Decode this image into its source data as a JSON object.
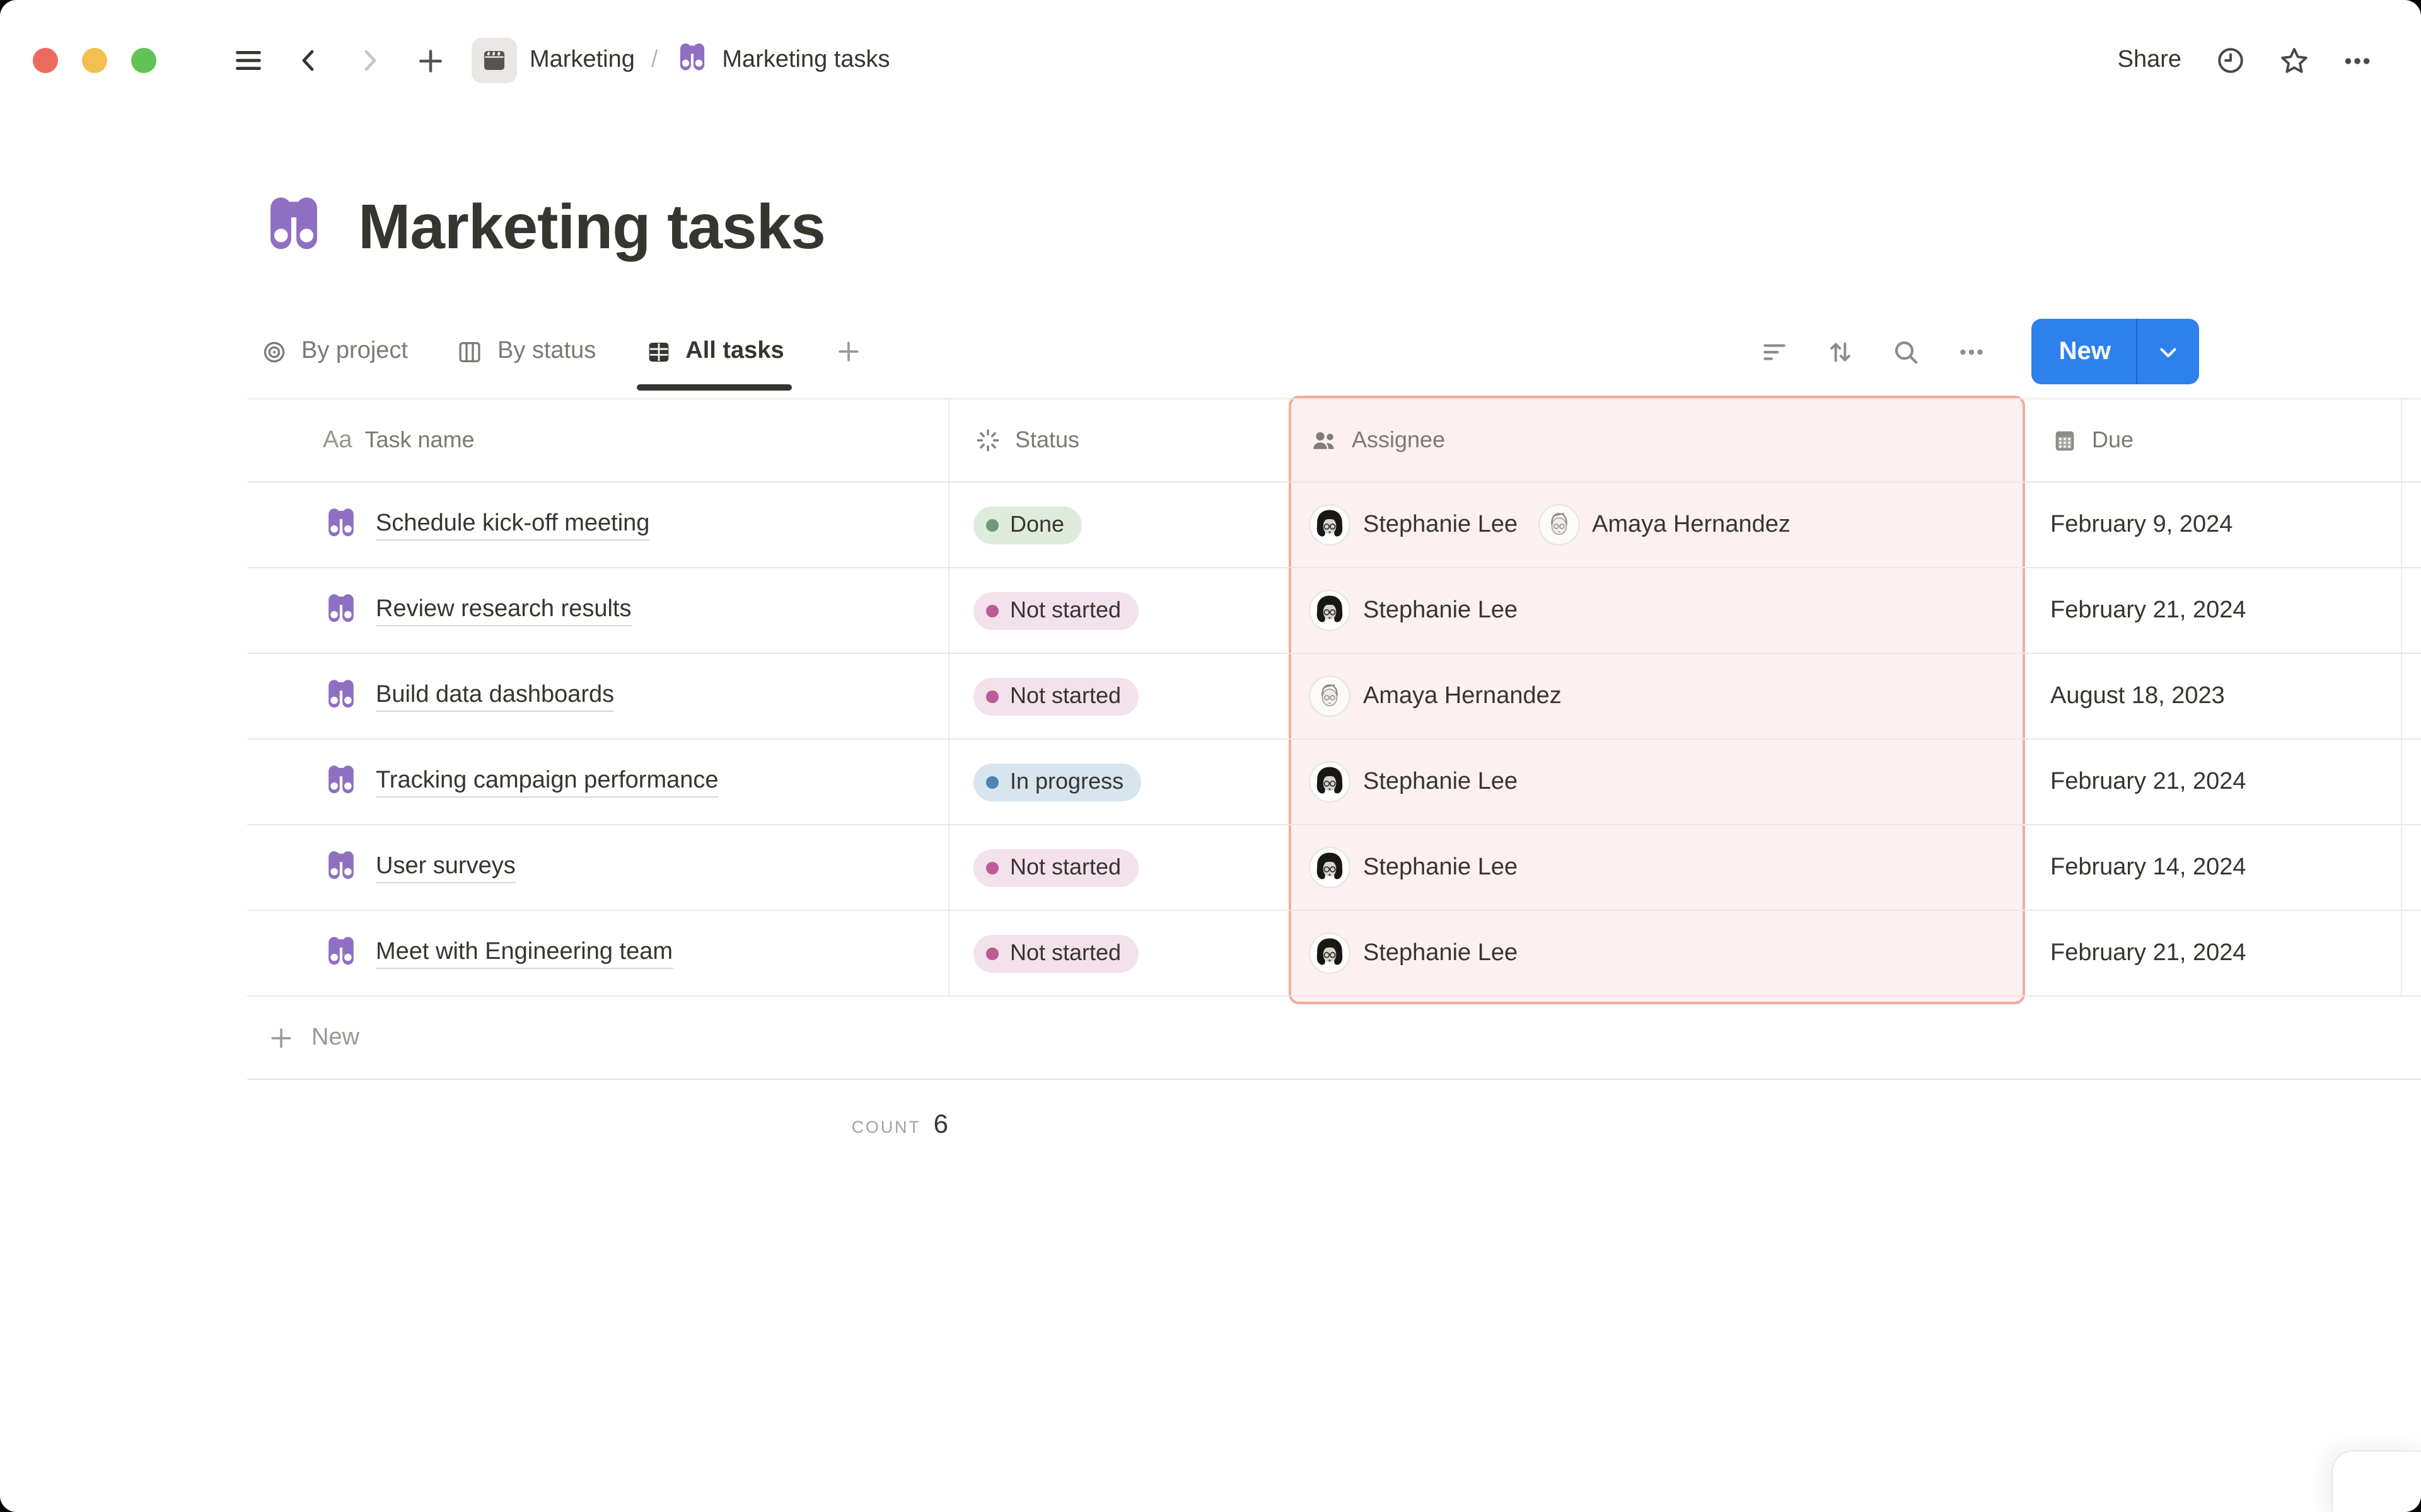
{
  "topbar": {
    "breadcrumb": [
      {
        "label": "Marketing",
        "icon": "clapperboard-page-icon"
      },
      {
        "label": "Marketing tasks",
        "icon": "binoculars-icon"
      }
    ],
    "separator": "/",
    "share_label": "Share"
  },
  "page": {
    "title": "Marketing tasks",
    "title_icon": "binoculars-icon"
  },
  "views": {
    "tabs": [
      {
        "label": "By project",
        "icon": "target-icon",
        "active": false
      },
      {
        "label": "By status",
        "icon": "board-icon",
        "active": false
      },
      {
        "label": "All tasks",
        "icon": "table-icon",
        "active": true
      }
    ]
  },
  "toolbar": {
    "new_label": "New"
  },
  "table": {
    "columns": [
      {
        "label": "Task name",
        "icon": "text-icon",
        "icon_text": "Aa"
      },
      {
        "label": "Status",
        "icon": "spinner-icon"
      },
      {
        "label": "Assignee",
        "icon": "people-icon",
        "highlighted": true
      },
      {
        "label": "Due",
        "icon": "calendar-icon"
      }
    ],
    "rows": [
      {
        "task": "Schedule kick-off meeting",
        "status": "Done",
        "status_color": "green",
        "assignees": [
          "Stephanie Lee",
          "Amaya Hernandez"
        ],
        "due": "February 9, 2024"
      },
      {
        "task": "Review research results",
        "status": "Not started",
        "status_color": "pink",
        "assignees": [
          "Stephanie Lee"
        ],
        "due": "February 21, 2024"
      },
      {
        "task": "Build data dashboards",
        "status": "Not started",
        "status_color": "pink",
        "assignees": [
          "Amaya Hernandez"
        ],
        "due": "August 18, 2023"
      },
      {
        "task": "Tracking campaign performance",
        "status": "In progress",
        "status_color": "blue",
        "assignees": [
          "Stephanie Lee"
        ],
        "due": "February 21, 2024"
      },
      {
        "task": "User surveys",
        "status": "Not started",
        "status_color": "pink",
        "assignees": [
          "Stephanie Lee"
        ],
        "due": "February 14, 2024"
      },
      {
        "task": "Meet with Engineering team",
        "status": "Not started",
        "status_color": "pink",
        "assignees": [
          "Stephanie Lee"
        ],
        "due": "February 21, 2024"
      }
    ],
    "new_row_label": "New",
    "count_label": "COUNT",
    "count_value": "6"
  },
  "people": {
    "Stephanie Lee": "dark-haired-illustration",
    "Amaya Hernandez": "light-sketch-illustration"
  },
  "colors": {
    "accent_blue": "#2E80EC",
    "binoculars_purple": "#8F6FC2",
    "highlight_column_bg": "#FCF1F0",
    "highlight_column_border": "#F0ABA2",
    "status_done_bg": "#DEECDC",
    "status_done_dot": "#6E9B76",
    "status_not_started_bg": "#F3E1EB",
    "status_not_started_dot": "#BE5A96",
    "status_in_progress_bg": "#D7E5EE",
    "status_in_progress_dot": "#4F83B0",
    "traffic_red": "#ED6A5E",
    "traffic_yellow": "#F4BF50",
    "traffic_green": "#61C355"
  }
}
